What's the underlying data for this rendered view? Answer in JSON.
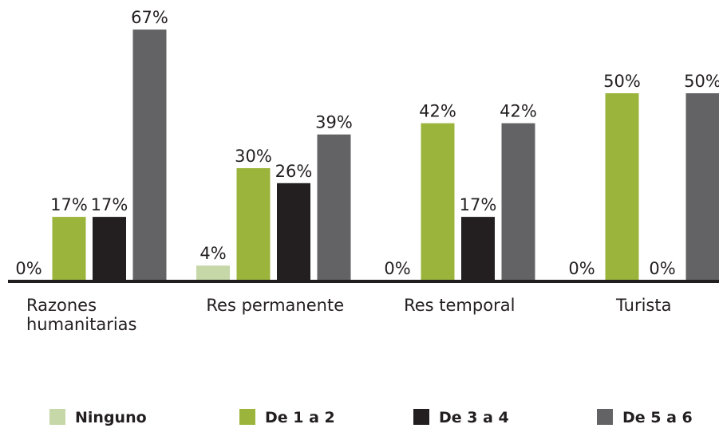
{
  "chart_data": {
    "type": "bar",
    "categories": [
      "Razones humanitarias",
      "Res permanente",
      "Res temporal",
      "Turista"
    ],
    "series": [
      {
        "name": "Ninguno",
        "color": "#c6d7a8",
        "values": [
          0,
          4,
          0,
          0
        ],
        "value_labels": [
          "0%",
          "4%",
          "0%",
          "0%"
        ]
      },
      {
        "name": "De 1 a 2",
        "color": "#9bb43b",
        "values": [
          17,
          30,
          42,
          50
        ],
        "value_labels": [
          "17%",
          "30%",
          "42%",
          "50%"
        ]
      },
      {
        "name": "De 3 a 4",
        "color": "#231f20",
        "values": [
          17,
          26,
          17,
          0
        ],
        "value_labels": [
          "17%",
          "26%",
          "17%",
          "0%"
        ]
      },
      {
        "name": "De 5 a 6",
        "color": "#636365",
        "values": [
          67,
          39,
          42,
          50
        ],
        "value_labels": [
          "67%",
          "39%",
          "42%",
          "50%"
        ]
      }
    ]
  }
}
